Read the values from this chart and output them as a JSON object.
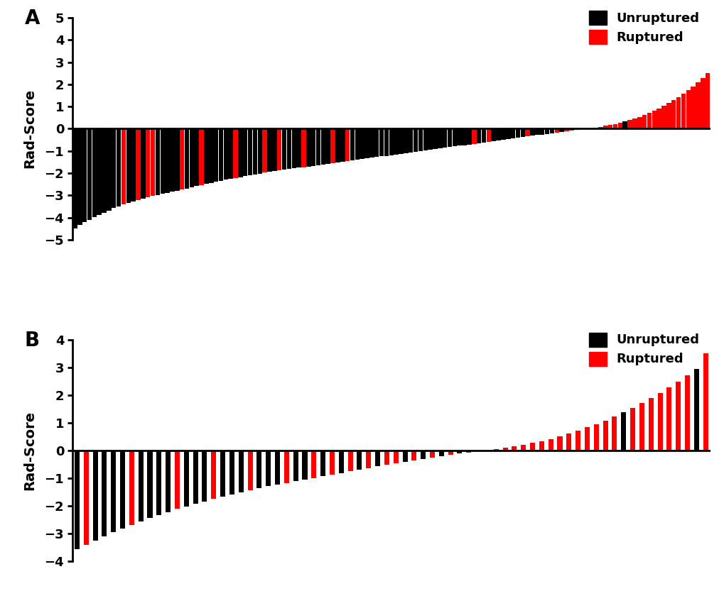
{
  "panel_A": {
    "label": "A",
    "ylabel": "Rad-Score",
    "ylim": [
      -5,
      5
    ],
    "yticks": [
      -5,
      -4,
      -3,
      -2,
      -1,
      0,
      1,
      2,
      3,
      4,
      5
    ],
    "values": [
      -4.5,
      -4.35,
      -4.22,
      -4.1,
      -3.98,
      -3.88,
      -3.78,
      -3.68,
      -3.58,
      -3.5,
      -3.42,
      -3.35,
      -3.28,
      -3.22,
      -3.16,
      -3.1,
      -3.04,
      -2.99,
      -2.94,
      -2.89,
      -2.84,
      -2.79,
      -2.74,
      -2.69,
      -2.64,
      -2.59,
      -2.54,
      -2.49,
      -2.44,
      -2.39,
      -2.34,
      -2.3,
      -2.26,
      -2.22,
      -2.18,
      -2.14,
      -2.1,
      -2.06,
      -2.02,
      -1.98,
      -1.94,
      -1.91,
      -1.88,
      -1.85,
      -1.82,
      -1.79,
      -1.76,
      -1.73,
      -1.7,
      -1.67,
      -1.64,
      -1.61,
      -1.58,
      -1.55,
      -1.52,
      -1.49,
      -1.46,
      -1.43,
      -1.4,
      -1.37,
      -1.34,
      -1.31,
      -1.28,
      -1.25,
      -1.22,
      -1.19,
      -1.16,
      -1.13,
      -1.1,
      -1.07,
      -1.04,
      -1.01,
      -0.98,
      -0.95,
      -0.92,
      -0.89,
      -0.86,
      -0.83,
      -0.8,
      -0.77,
      -0.74,
      -0.71,
      -0.68,
      -0.65,
      -0.62,
      -0.59,
      -0.56,
      -0.53,
      -0.5,
      -0.47,
      -0.44,
      -0.41,
      -0.38,
      -0.35,
      -0.32,
      -0.29,
      -0.26,
      -0.23,
      -0.2,
      -0.17,
      -0.14,
      -0.11,
      -0.08,
      -0.05,
      -0.02,
      -0.01,
      0.02,
      0.05,
      0.09,
      0.13,
      0.17,
      0.22,
      0.27,
      0.33,
      0.39,
      0.46,
      0.53,
      0.61,
      0.7,
      0.8,
      0.91,
      1.03,
      1.15,
      1.28,
      1.42,
      1.57,
      1.73,
      1.9,
      2.08,
      2.28,
      2.5
    ],
    "colors": [
      "#000000",
      "#000000",
      "#000000",
      "#000000",
      "#000000",
      "#000000",
      "#000000",
      "#000000",
      "#000000",
      "#000000",
      "#FF0000",
      "#000000",
      "#000000",
      "#FF0000",
      "#000000",
      "#FF0000",
      "#FF0000",
      "#000000",
      "#000000",
      "#000000",
      "#000000",
      "#000000",
      "#FF0000",
      "#000000",
      "#000000",
      "#000000",
      "#FF0000",
      "#000000",
      "#000000",
      "#000000",
      "#000000",
      "#000000",
      "#000000",
      "#FF0000",
      "#000000",
      "#000000",
      "#000000",
      "#000000",
      "#000000",
      "#FF0000",
      "#000000",
      "#000000",
      "#FF0000",
      "#000000",
      "#000000",
      "#000000",
      "#000000",
      "#FF0000",
      "#000000",
      "#000000",
      "#000000",
      "#000000",
      "#000000",
      "#FF0000",
      "#000000",
      "#000000",
      "#FF0000",
      "#000000",
      "#000000",
      "#000000",
      "#000000",
      "#000000",
      "#000000",
      "#000000",
      "#000000",
      "#000000",
      "#000000",
      "#000000",
      "#000000",
      "#000000",
      "#000000",
      "#000000",
      "#000000",
      "#000000",
      "#000000",
      "#000000",
      "#000000",
      "#000000",
      "#000000",
      "#000000",
      "#000000",
      "#000000",
      "#FF0000",
      "#000000",
      "#000000",
      "#FF0000",
      "#000000",
      "#000000",
      "#000000",
      "#000000",
      "#000000",
      "#000000",
      "#000000",
      "#FF0000",
      "#000000",
      "#000000",
      "#000000",
      "#000000",
      "#000000",
      "#FF0000",
      "#000000",
      "#FF0000",
      "#FF0000",
      "#FF0000",
      "#FF0000",
      "#FF0000",
      "#FF0000",
      "#000000",
      "#FF0000",
      "#FF0000",
      "#FF0000",
      "#FF0000",
      "#FF0000",
      "#000000",
      "#FF0000",
      "#FF0000",
      "#FF0000",
      "#FF0000",
      "#FF0000",
      "#FF0000",
      "#FF0000",
      "#FF0000",
      "#FF0000",
      "#FF0000",
      "#FF0000",
      "#FF0000",
      "#FF0000",
      "#FF0000",
      "#FF0000",
      "#FF0000",
      "#FF0000"
    ]
  },
  "panel_B": {
    "label": "B",
    "ylabel": "Rad-Score",
    "ylim": [
      -4,
      4
    ],
    "yticks": [
      -4,
      -3,
      -2,
      -1,
      0,
      1,
      2,
      3,
      4
    ],
    "values": [
      -3.55,
      -3.4,
      -3.25,
      -3.1,
      -2.95,
      -2.82,
      -2.69,
      -2.56,
      -2.44,
      -2.33,
      -2.22,
      -2.11,
      -2.01,
      -1.92,
      -1.83,
      -1.74,
      -1.66,
      -1.58,
      -1.5,
      -1.43,
      -1.36,
      -1.29,
      -1.23,
      -1.17,
      -1.11,
      -1.05,
      -0.99,
      -0.93,
      -0.87,
      -0.81,
      -0.75,
      -0.69,
      -0.63,
      -0.57,
      -0.51,
      -0.46,
      -0.41,
      -0.36,
      -0.31,
      -0.26,
      -0.21,
      -0.16,
      -0.11,
      -0.07,
      -0.03,
      0.0,
      0.04,
      0.09,
      0.14,
      0.2,
      0.27,
      0.34,
      0.42,
      0.51,
      0.61,
      0.72,
      0.83,
      0.95,
      1.08,
      1.22,
      1.37,
      1.53,
      1.7,
      1.88,
      2.07,
      2.27,
      2.48,
      2.71,
      2.95,
      3.5
    ],
    "colors": [
      "#000000",
      "#FF0000",
      "#000000",
      "#000000",
      "#000000",
      "#000000",
      "#FF0000",
      "#000000",
      "#000000",
      "#000000",
      "#000000",
      "#FF0000",
      "#000000",
      "#000000",
      "#000000",
      "#FF0000",
      "#000000",
      "#000000",
      "#000000",
      "#FF0000",
      "#000000",
      "#000000",
      "#000000",
      "#FF0000",
      "#000000",
      "#000000",
      "#FF0000",
      "#000000",
      "#FF0000",
      "#000000",
      "#FF0000",
      "#000000",
      "#FF0000",
      "#000000",
      "#FF0000",
      "#FF0000",
      "#000000",
      "#FF0000",
      "#000000",
      "#FF0000",
      "#000000",
      "#FF0000",
      "#000000",
      "#FF0000",
      "#000000",
      "#FF0000",
      "#FF0000",
      "#FF0000",
      "#FF0000",
      "#FF0000",
      "#FF0000",
      "#FF0000",
      "#FF0000",
      "#FF0000",
      "#FF0000",
      "#FF0000",
      "#FF0000",
      "#FF0000",
      "#FF0000",
      "#FF0000",
      "#000000",
      "#FF0000",
      "#FF0000",
      "#FF0000",
      "#FF0000",
      "#FF0000",
      "#FF0000",
      "#FF0000",
      "#000000",
      "#FF0000"
    ]
  },
  "background_color": "#ffffff",
  "legend_unruptured": "Unruptured",
  "legend_ruptured": "Ruptured",
  "unruptured_color": "#000000",
  "ruptured_color": "#FF0000",
  "panel_A_bar_width": 0.95,
  "panel_B_bar_width": 0.55
}
